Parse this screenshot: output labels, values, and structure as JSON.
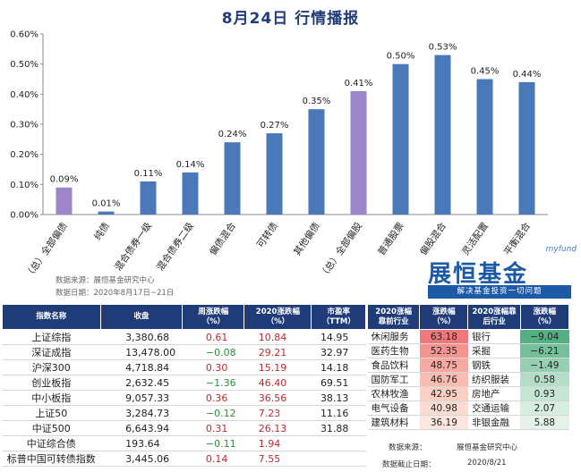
{
  "title": "8月24日  行情播报",
  "chart_data": {
    "type": "bar",
    "categories": [
      "（总）全部偏债",
      "纯债",
      "混合债券一级",
      "混合债券二级",
      "偏债混合",
      "可转债",
      "其他偏债",
      "（总）全部偏股",
      "普通股票",
      "偏股混合",
      "灵活配置",
      "平衡混合"
    ],
    "values": [
      0.09,
      0.01,
      0.11,
      0.14,
      0.24,
      0.27,
      0.35,
      0.41,
      0.5,
      0.53,
      0.45,
      0.44
    ],
    "value_labels": [
      "0.09%",
      "0.01%",
      "0.11%",
      "0.14%",
      "0.24%",
      "0.27%",
      "0.35%",
      "0.41%",
      "0.50%",
      "0.53%",
      "0.45%",
      "0.44%"
    ],
    "highlight": [
      0,
      7
    ],
    "bar_color": "#4a78b8",
    "highlight_color": "#9a86c8",
    "ylim": [
      0,
      0.6
    ],
    "yticks": [
      "0.00%",
      "0.10%",
      "0.20%",
      "0.30%",
      "0.40%",
      "0.50%",
      "0.60%"
    ],
    "grid": false
  },
  "source_line": "数据来源：展恒基金研究中心",
  "date_line": "数据日期：2020年8月17日~21日",
  "logo": {
    "small": "myfund",
    "main": "展恒基金",
    "slogan": "解决基金投资一切问题"
  },
  "index_table": {
    "headers": [
      "指数名称",
      "收盘",
      "周涨跌幅\n（%）",
      "2020涨跌幅\n（%）",
      "市盈率\n（TTM）"
    ],
    "rows": [
      {
        "name": "上证综指",
        "close": "3,380.68",
        "week": "0.61",
        "year": "10.84",
        "pe": "14.95"
      },
      {
        "name": "深证成指",
        "close": "13,478.00",
        "week": "−0.08",
        "year": "29.21",
        "pe": "32.97"
      },
      {
        "name": "沪深300",
        "close": "4,718.84",
        "week": "0.30",
        "year": "15.19",
        "pe": "14.18"
      },
      {
        "name": "创业板指",
        "close": "2,632.45",
        "week": "−1.36",
        "year": "46.40",
        "pe": "69.51"
      },
      {
        "name": "中小板指",
        "close": "9,057.33",
        "week": "0.36",
        "year": "36.56",
        "pe": "38.13"
      },
      {
        "name": "上证50",
        "close": "3,284.73",
        "week": "−0.12",
        "year": "7.23",
        "pe": "11.16"
      },
      {
        "name": "中证500",
        "close": "6,643.94",
        "week": "0.31",
        "year": "26.13",
        "pe": "31.88"
      },
      {
        "name": "中证综合债",
        "close": "193.64",
        "week": "−0.11",
        "year": "1.94",
        "pe": ""
      },
      {
        "name": "标普中国可转债指数",
        "close": "3,445.06",
        "week": "0.14",
        "year": "7.55",
        "pe": ""
      }
    ]
  },
  "sector_table": {
    "headers": [
      "2020涨幅\n靠前行业",
      "涨跌幅\n（%）",
      "2020涨幅靠\n后行业",
      "涨跌幅\n（%）"
    ],
    "rows": [
      {
        "top": "休闲服务",
        "top_val": "63.18",
        "bot": "银行",
        "bot_val": "−9.04"
      },
      {
        "top": "医药生物",
        "top_val": "52.35",
        "bot": "采掘",
        "bot_val": "−6.21"
      },
      {
        "top": "食品饮料",
        "top_val": "48.75",
        "bot": "钢铁",
        "bot_val": "−1.49"
      },
      {
        "top": "国防军工",
        "top_val": "46.76",
        "bot": "纺织服装",
        "bot_val": "0.58"
      },
      {
        "top": "农林牧渔",
        "top_val": "42.95",
        "bot": "房地产",
        "bot_val": "0.93"
      },
      {
        "top": "电气设备",
        "top_val": "40.98",
        "bot": "交通运输",
        "bot_val": "2.07"
      },
      {
        "top": "建筑材料",
        "top_val": "36.19",
        "bot": "非银金融",
        "bot_val": "5.88"
      }
    ],
    "top_colors": [
      "#f0777a",
      "#f4948f",
      "#f6a9a0",
      "#f8bcb0",
      "#fad0c4",
      "#fcdcd2",
      "#fde6de"
    ],
    "bot_colors": [
      "#53b083",
      "#73c09a",
      "#96d0b3",
      "#b3ddc7",
      "#c6e6d5",
      "#d6eee1",
      "#e3f3ea"
    ]
  },
  "footer": {
    "src_label": "数据来源：",
    "src_value": "展恒基金研究中心",
    "date_label": "数据截止日期：",
    "date_value": "2020/8/21"
  }
}
